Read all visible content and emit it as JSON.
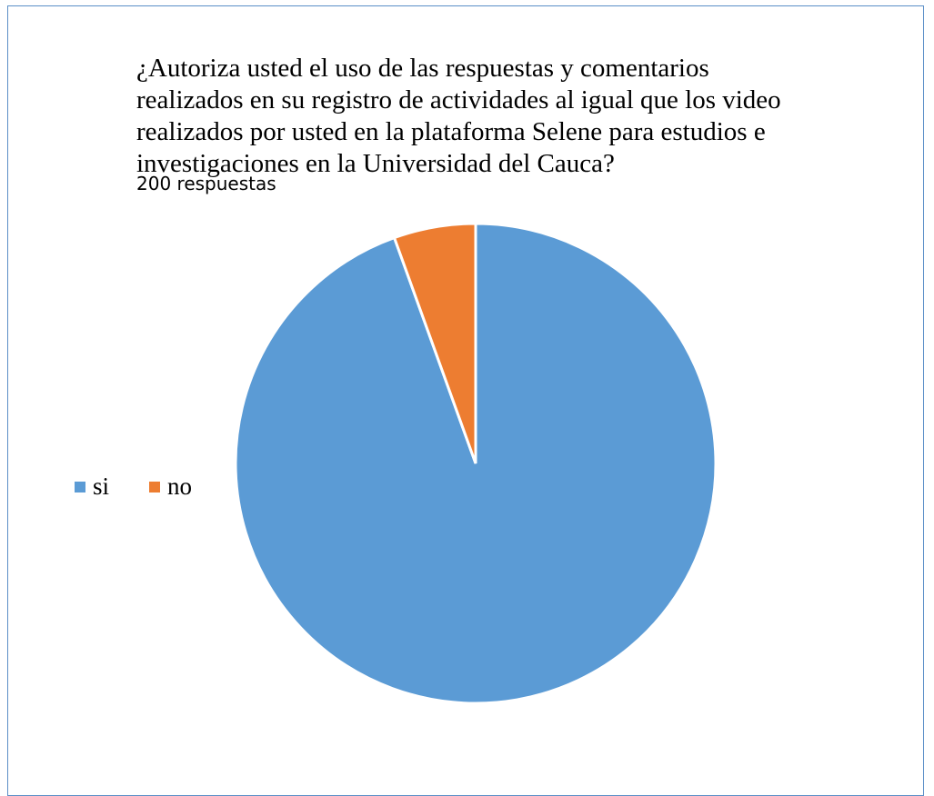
{
  "chart_data": {
    "type": "pie",
    "title": "¿Autoriza usted el uso de las respuestas y comentarios realizados en su registro de actividades al igual que los video realizados por usted en la plataforma Selene para estudios e investigaciones en la Universidad del Cauca?",
    "subtitle": "200 respuestas",
    "categories": [
      "si",
      "no"
    ],
    "values": [
      189,
      11
    ],
    "colors": [
      "#5b9bd5",
      "#ed7d31"
    ],
    "legend_position": "left"
  }
}
